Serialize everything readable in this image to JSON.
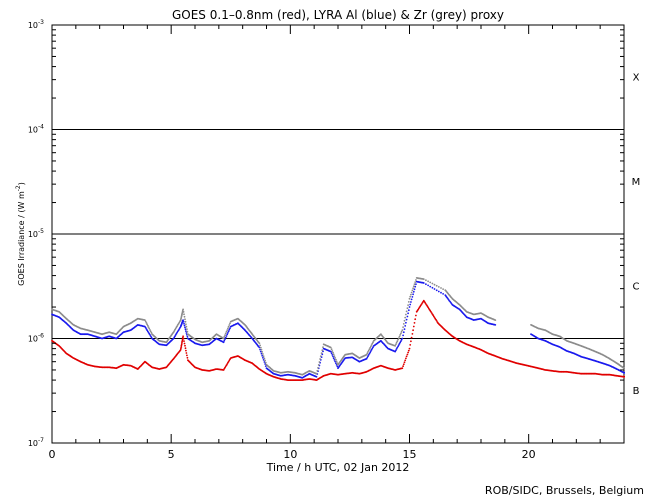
{
  "chart_data": {
    "type": "scatter",
    "title": "GOES 0.1–0.8nm (red), LYRA Al (blue) & Zr (grey) proxy",
    "xlabel": "Time / h UTC, 02 Jan 2012",
    "ylabel_main": "GOES Irradiance / (W m",
    "ylabel_exp": "-2",
    "ylabel_close": ")",
    "xlim": [
      0,
      24
    ],
    "ylim": [
      1e-07,
      0.001
    ],
    "yscale": "log",
    "x_ticks": [
      {
        "value": 0,
        "label": "0"
      },
      {
        "value": 5,
        "label": "5"
      },
      {
        "value": 10,
        "label": "10"
      },
      {
        "value": 15,
        "label": "15"
      },
      {
        "value": 20,
        "label": "20"
      }
    ],
    "y_ticks": [
      {
        "value": 1e-07,
        "base": "10",
        "exp": "-7"
      },
      {
        "value": 1e-06,
        "base": "10",
        "exp": "-6"
      },
      {
        "value": 1e-05,
        "base": "10",
        "exp": "-5"
      },
      {
        "value": 0.0001,
        "base": "10",
        "exp": "-4"
      },
      {
        "value": 0.001,
        "base": "10",
        "exp": "-3"
      }
    ],
    "flare_classes": [
      {
        "label": "X",
        "value": 0.00032
      },
      {
        "label": "M",
        "value": 3.2e-05
      },
      {
        "label": "C",
        "value": 3.2e-06
      },
      {
        "label": "B",
        "value": 3.2e-07
      }
    ],
    "threshold_lines": [
      1e-06,
      1e-05,
      0.0001
    ],
    "series": [
      {
        "color": "#e00000",
        "x": [
          0,
          0.3,
          0.6,
          0.9,
          1.2,
          1.5,
          1.8,
          2.1,
          2.4,
          2.7,
          3.0,
          3.3,
          3.6,
          3.9,
          4.2,
          4.5,
          4.8,
          5.1,
          5.4,
          5.5,
          5.7,
          6.0,
          6.3,
          6.6,
          6.9,
          7.2,
          7.5,
          7.8,
          8.1,
          8.4,
          8.7,
          9.0,
          9.3,
          9.6,
          9.9,
          10.2,
          10.5,
          10.8,
          11.1,
          11.4,
          11.7,
          12.0,
          12.3,
          12.6,
          12.9,
          13.2,
          13.5,
          13.8,
          14.1,
          14.4,
          14.7,
          15.0,
          15.3,
          15.6,
          15.9,
          16.2,
          16.5,
          16.8,
          17.1,
          17.4,
          17.7,
          18.0,
          18.3,
          18.6,
          18.9,
          19.2,
          19.5,
          19.8,
          20.1,
          20.4,
          20.7,
          21.0,
          21.3,
          21.6,
          21.9,
          22.2,
          22.5,
          22.8,
          23.1,
          23.4,
          23.7,
          24.0
        ],
        "y": [
          9.5e-07,
          8.5e-07,
          7.2e-07,
          6.5e-07,
          6e-07,
          5.6e-07,
          5.4e-07,
          5.3e-07,
          5.3e-07,
          5.2e-07,
          5.6e-07,
          5.5e-07,
          5.1e-07,
          6e-07,
          5.3e-07,
          5.1e-07,
          5.3e-07,
          6.4e-07,
          7.8e-07,
          1.05e-06,
          6.2e-07,
          5.3e-07,
          5e-07,
          4.9e-07,
          5.1e-07,
          5e-07,
          6.5e-07,
          6.8e-07,
          6.2e-07,
          5.8e-07,
          5.1e-07,
          4.6e-07,
          4.3e-07,
          4.1e-07,
          4e-07,
          4e-07,
          4e-07,
          4.1e-07,
          4e-07,
          4.4e-07,
          4.6e-07,
          4.5e-07,
          4.6e-07,
          4.7e-07,
          4.6e-07,
          4.8e-07,
          5.2e-07,
          5.5e-07,
          5.2e-07,
          5e-07,
          5.2e-07,
          8e-07,
          1.8e-06,
          2.3e-06,
          1.8e-06,
          1.4e-06,
          1.2e-06,
          1.05e-06,
          9.5e-07,
          8.8e-07,
          8.3e-07,
          7.8e-07,
          7.2e-07,
          6.8e-07,
          6.4e-07,
          6.1e-07,
          5.8e-07,
          5.6e-07,
          5.4e-07,
          5.2e-07,
          5e-07,
          4.9e-07,
          4.8e-07,
          4.8e-07,
          4.7e-07,
          4.6e-07,
          4.6e-07,
          4.6e-07,
          4.5e-07,
          4.5e-07,
          4.4e-07,
          4.3e-07
        ]
      },
      {
        "color": "#1a1aee",
        "x": [
          0,
          0.3,
          0.6,
          0.9,
          1.2,
          1.5,
          1.8,
          2.1,
          2.4,
          2.7,
          3.0,
          3.3,
          3.6,
          3.9,
          4.2,
          4.5,
          4.8,
          5.1,
          5.4,
          5.5,
          5.7,
          6.0,
          6.3,
          6.6,
          6.9,
          7.2,
          7.5,
          7.8,
          8.1,
          8.4,
          8.7,
          9.0,
          9.3,
          9.6,
          9.9,
          10.2,
          10.5,
          10.8,
          11.1,
          11.4,
          11.7,
          12.0,
          12.3,
          12.6,
          12.9,
          13.2,
          13.5,
          13.8,
          14.1,
          14.4,
          14.7,
          15.0,
          15.3,
          15.6,
          16.5,
          16.8,
          17.1,
          17.4,
          17.7,
          18.0,
          18.3,
          18.6,
          20.1,
          20.4,
          20.7,
          21.0,
          21.3,
          21.6,
          21.9,
          22.2,
          22.5,
          22.8,
          23.1,
          23.4,
          23.7,
          24.0
        ],
        "y": [
          1.7e-06,
          1.6e-06,
          1.4e-06,
          1.2e-06,
          1.1e-06,
          1.1e-06,
          1.05e-06,
          1e-06,
          1.05e-06,
          1e-06,
          1.15e-06,
          1.2e-06,
          1.35e-06,
          1.3e-06,
          1e-06,
          8.8e-07,
          8.6e-07,
          1e-06,
          1.3e-06,
          1.5e-06,
          1e-06,
          9e-07,
          8.6e-07,
          8.8e-07,
          1e-06,
          9.2e-07,
          1.3e-06,
          1.4e-06,
          1.2e-06,
          1e-06,
          8.2e-07,
          5.2e-07,
          4.6e-07,
          4.4e-07,
          4.5e-07,
          4.4e-07,
          4.2e-07,
          4.6e-07,
          4.3e-07,
          8e-07,
          7.5e-07,
          5.2e-07,
          6.5e-07,
          6.6e-07,
          6e-07,
          6.4e-07,
          8.5e-07,
          9.5e-07,
          8e-07,
          7.5e-07,
          1e-06,
          2e-06,
          3.5e-06,
          3.4e-06,
          2.6e-06,
          2.1e-06,
          1.9e-06,
          1.6e-06,
          1.5e-06,
          1.55e-06,
          1.4e-06,
          1.35e-06,
          1.1e-06,
          1e-06,
          9.5e-07,
          8.8e-07,
          8.3e-07,
          7.6e-07,
          7.2e-07,
          6.7e-07,
          6.4e-07,
          6.1e-07,
          5.8e-07,
          5.5e-07,
          5.1e-07,
          4.7e-07
        ]
      },
      {
        "color": "#8c8c8c",
        "x": [
          0,
          0.3,
          0.6,
          0.9,
          1.2,
          1.5,
          1.8,
          2.1,
          2.4,
          2.7,
          3.0,
          3.3,
          3.6,
          3.9,
          4.2,
          4.5,
          4.8,
          5.1,
          5.4,
          5.5,
          5.7,
          6.0,
          6.3,
          6.6,
          6.9,
          7.2,
          7.5,
          7.8,
          8.1,
          8.4,
          8.7,
          9.0,
          9.3,
          9.6,
          9.9,
          10.2,
          10.5,
          10.8,
          11.1,
          11.4,
          11.7,
          12.0,
          12.3,
          12.6,
          12.9,
          13.2,
          13.5,
          13.8,
          14.1,
          14.4,
          14.7,
          15.0,
          15.3,
          15.6,
          16.5,
          16.8,
          17.1,
          17.4,
          17.7,
          18.0,
          18.3,
          18.6,
          20.1,
          20.4,
          20.7,
          21.0,
          21.3,
          21.6,
          21.9,
          22.2,
          22.5,
          22.8,
          23.1,
          23.4,
          23.7,
          24.0
        ],
        "y": [
          1.9e-06,
          1.8e-06,
          1.55e-06,
          1.35e-06,
          1.25e-06,
          1.2e-06,
          1.15e-06,
          1.1e-06,
          1.15e-06,
          1.1e-06,
          1.3e-06,
          1.4e-06,
          1.55e-06,
          1.5e-06,
          1.1e-06,
          9.5e-07,
          9.2e-07,
          1.15e-06,
          1.5e-06,
          1.9e-06,
          1.1e-06,
          9.8e-07,
          9.2e-07,
          9.5e-07,
          1.1e-06,
          1e-06,
          1.45e-06,
          1.55e-06,
          1.35e-06,
          1.1e-06,
          9e-07,
          5.6e-07,
          4.9e-07,
          4.7e-07,
          4.8e-07,
          4.7e-07,
          4.5e-07,
          4.9e-07,
          4.6e-07,
          8.8e-07,
          8.2e-07,
          5.6e-07,
          7e-07,
          7.2e-07,
          6.5e-07,
          7e-07,
          9.5e-07,
          1.1e-06,
          9e-07,
          8.5e-07,
          1.2e-06,
          2.4e-06,
          3.8e-06,
          3.7e-06,
          2.9e-06,
          2.4e-06,
          2.1e-06,
          1.8e-06,
          1.7e-06,
          1.75e-06,
          1.6e-06,
          1.5e-06,
          1.35e-06,
          1.25e-06,
          1.2e-06,
          1.1e-06,
          1.05e-06,
          9.5e-07,
          9e-07,
          8.5e-07,
          8e-07,
          7.5e-07,
          7e-07,
          6.4e-07,
          5.8e-07,
          5.2e-07
        ]
      }
    ],
    "grid": false,
    "legend": "none"
  },
  "footer": "ROB/SIDC, Brussels, Belgium"
}
